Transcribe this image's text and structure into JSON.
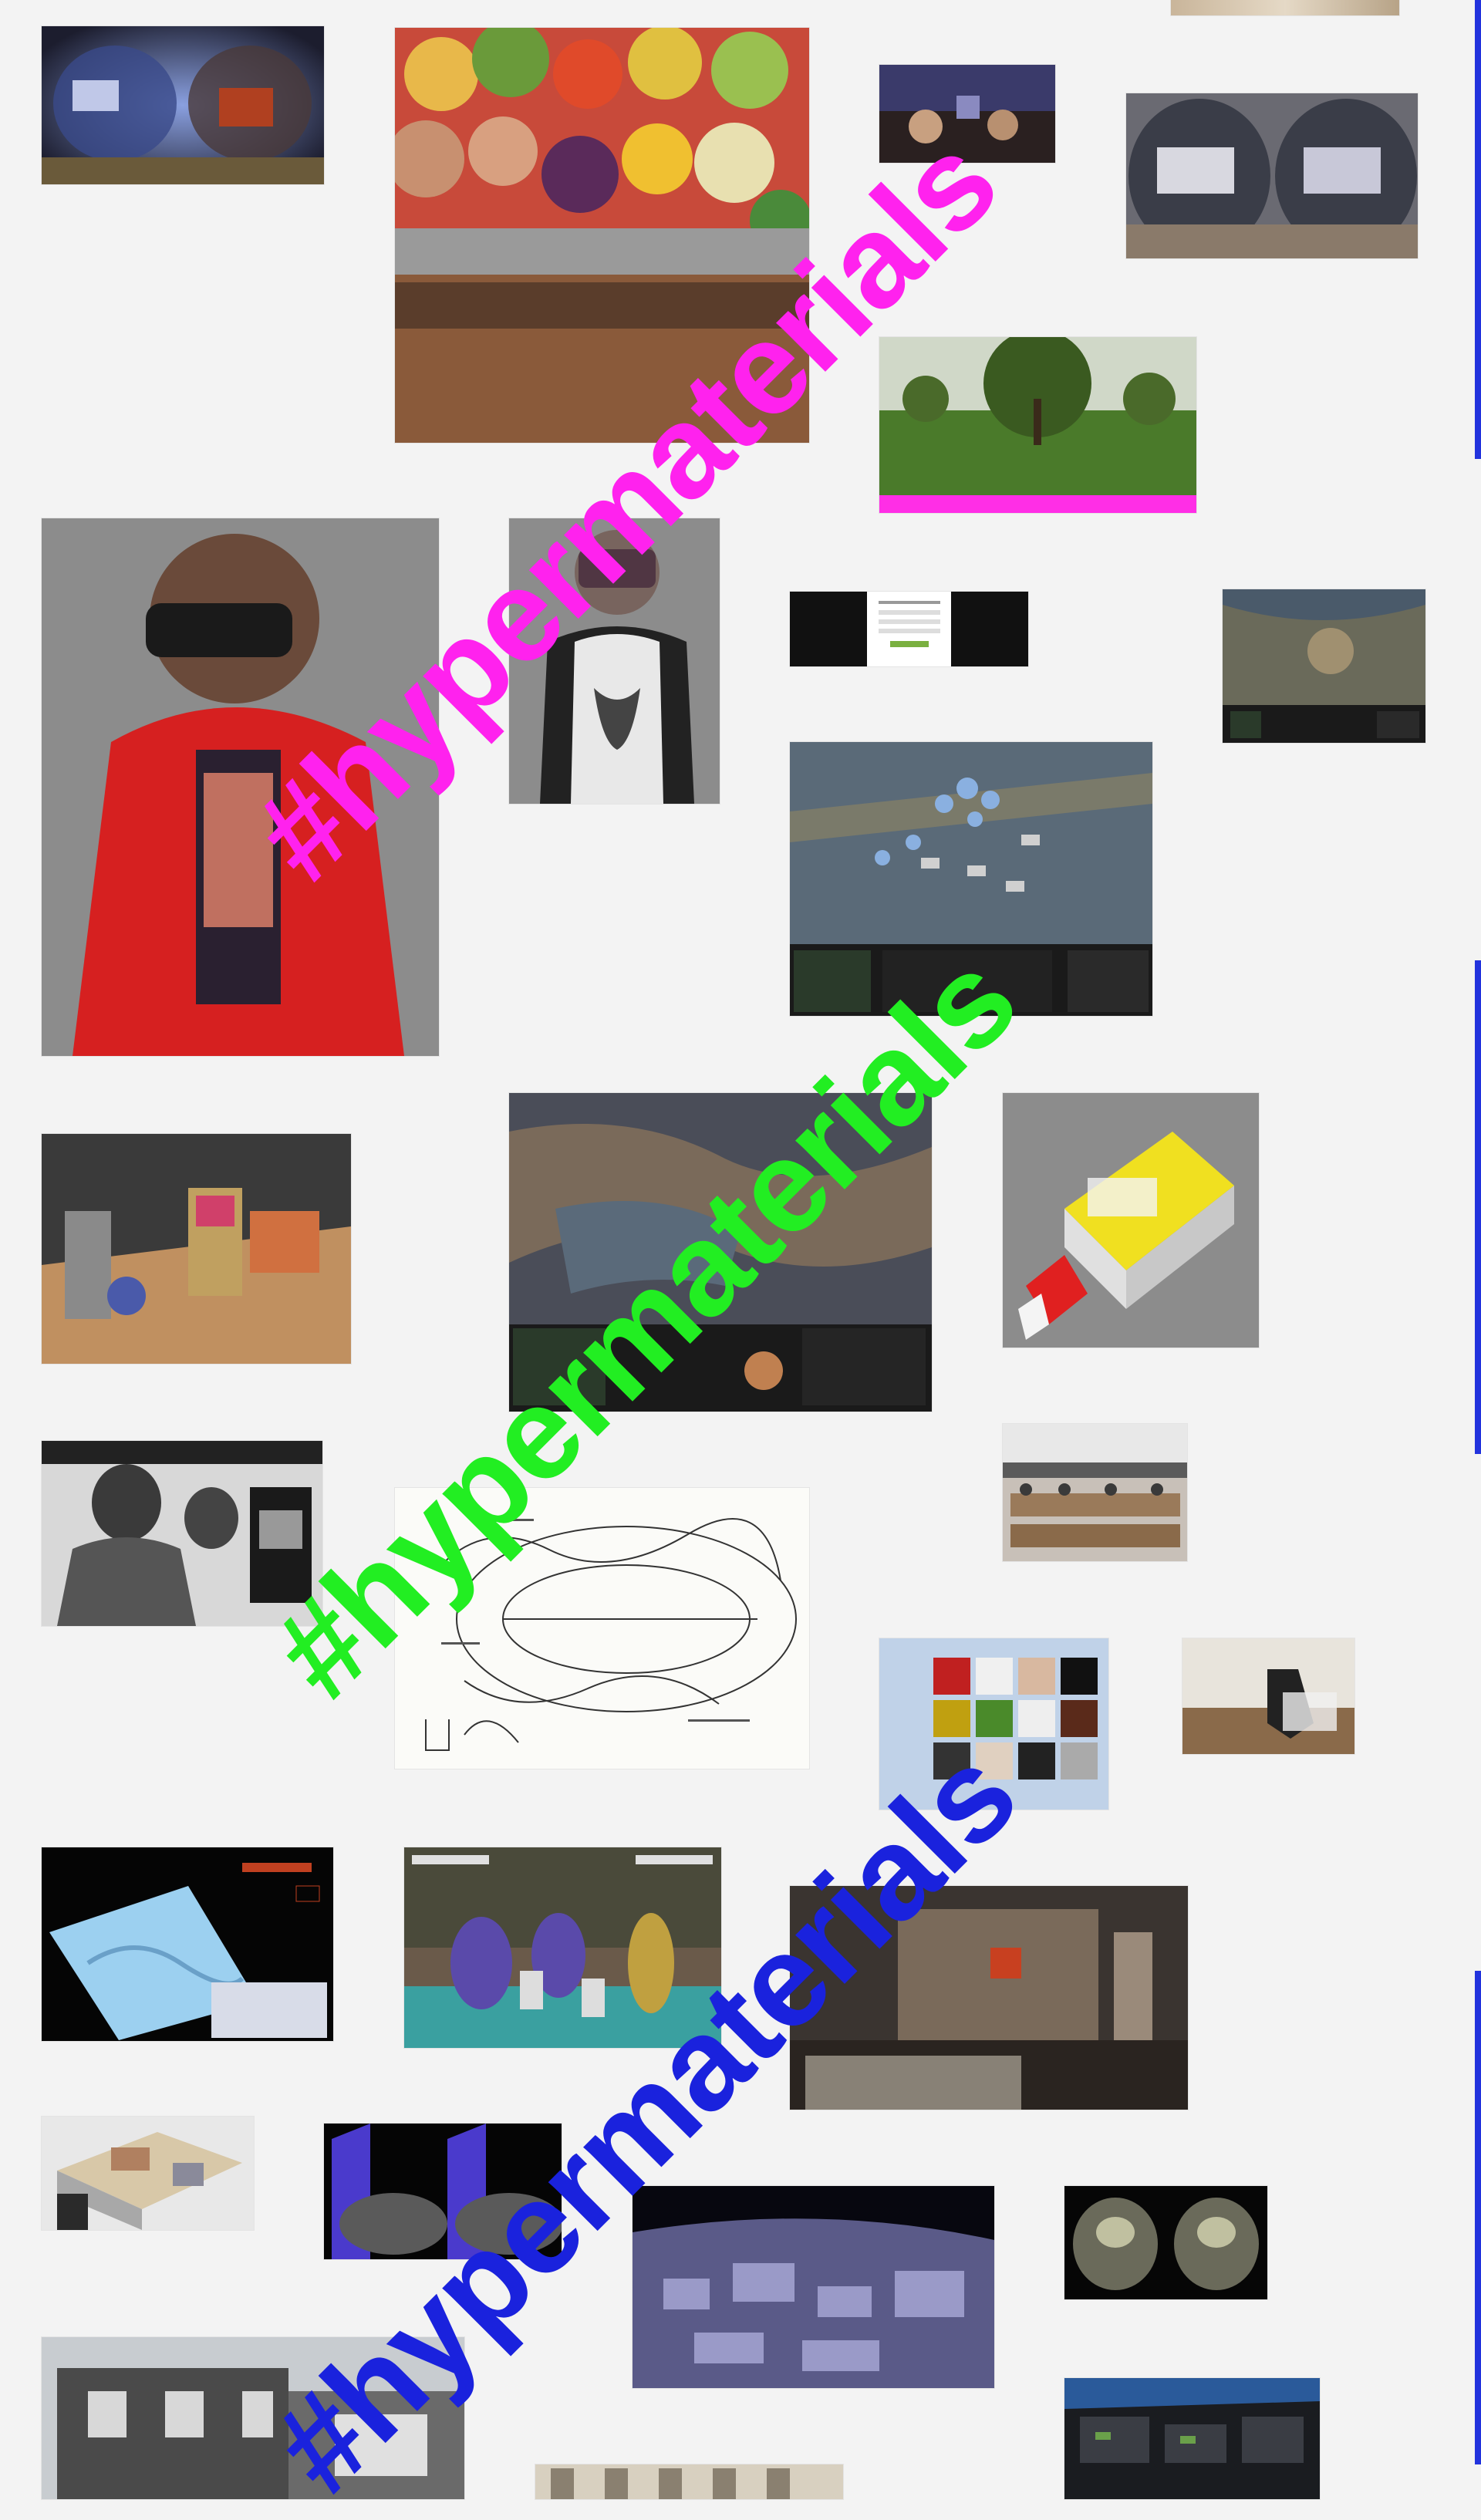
{
  "hashtags": [
    {
      "text": "#hypermaterials",
      "color": "#ff22ee"
    },
    {
      "text": "#hypermaterials",
      "color": "#22ee22"
    },
    {
      "text": "#hypermaterials",
      "color": "#1a22dd"
    }
  ],
  "colors": {
    "background": "#f3f3f3",
    "side_rule": "#2233dd",
    "magenta_bar": "#ff2ee6"
  },
  "thumbnails": [
    {
      "name": "panorama-interior-thumb",
      "icon": "equirect-panorama"
    },
    {
      "name": "vegetable-market-thumb",
      "icon": "produce-photo"
    },
    {
      "name": "small-panorama-thumb",
      "icon": "panorama"
    },
    {
      "name": "studio-panorama-thumb",
      "icon": "equirect-panorama"
    },
    {
      "name": "park-panorama-thumb",
      "icon": "tree-panorama"
    },
    {
      "name": "person-vr-headset-red-jacket-thumb",
      "icon": "vr-person"
    },
    {
      "name": "child-vr-headset-thumb",
      "icon": "vr-child"
    },
    {
      "name": "web-form-screenshot-thumb",
      "icon": "web-page"
    },
    {
      "name": "starcraft-small-thumb",
      "icon": "strategy-game"
    },
    {
      "name": "starcraft-battle-thumb",
      "icon": "strategy-game"
    },
    {
      "name": "arcade-installation-thumb",
      "icon": "room-installation"
    },
    {
      "name": "starcraft-map-thumb",
      "icon": "strategy-game"
    },
    {
      "name": "3d-building-model-thumb",
      "icon": "isometric-model"
    },
    {
      "name": "arcade-players-bw-thumb",
      "icon": "bw-photo"
    },
    {
      "name": "conference-room-thumb",
      "icon": "room-photo"
    },
    {
      "name": "hand-drawn-map-thumb",
      "icon": "sketch-map"
    },
    {
      "name": "face-grid-thumb",
      "icon": "face-grid"
    },
    {
      "name": "dog-video-thumb",
      "icon": "video-frame"
    },
    {
      "name": "terrain-model-thumb",
      "icon": "terrain-ui"
    },
    {
      "name": "arcade-beat-em-up-thumb",
      "icon": "arcade-game"
    },
    {
      "name": "dark-interior-room-thumb",
      "icon": "interior-photo"
    },
    {
      "name": "isometric-room-thumb",
      "icon": "isometric-room"
    },
    {
      "name": "vr-split-view-thumb",
      "icon": "stereo-view"
    },
    {
      "name": "night-city-aerial-thumb",
      "icon": "aerial-city"
    },
    {
      "name": "stereo-frog-thumb",
      "icon": "stereo-view"
    },
    {
      "name": "street-houses-thumb",
      "icon": "street-photo"
    },
    {
      "name": "cockpit-thumb",
      "icon": "cockpit"
    },
    {
      "name": "ceiling-dome-thumb",
      "icon": "dome-photo"
    },
    {
      "name": "top-cropped-thumb",
      "icon": "photo"
    }
  ]
}
